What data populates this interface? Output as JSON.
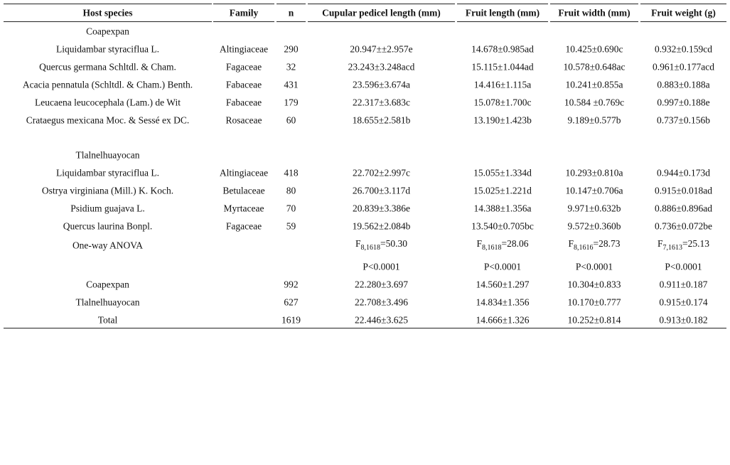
{
  "table": {
    "headers": [
      "Host species",
      "Family",
      "n",
      "Cupular pedicel length (mm)",
      "Fruit length (mm)",
      "Fruit width (mm)",
      "Fruit weight (g)"
    ],
    "rows": [
      [
        "Coapexpan"
      ],
      [
        "Liquidambar styraciflua L.",
        "Altingiaceae",
        "290",
        "20.947±±2.957e",
        "14.678±0.985ad",
        "10.425±0.690c",
        "0.932±0.159cd"
      ],
      [
        "Quercus germana Schltdl. & Cham.",
        "Fagaceae",
        "32",
        "23.243±3.248acd",
        "15.115±1.044ad",
        "10.578±0.648ac",
        "0.961±0.177acd"
      ],
      [
        "Acacia pennatula (Schltdl. & Cham.) Benth.",
        "Fabaceae",
        "431",
        "23.596±3.674a",
        "14.416±1.115a",
        "10.241±0.855a",
        "0.883±0.188a"
      ],
      [
        "Leucaena leucocephala (Lam.) de Wit",
        "Fabaceae",
        "179",
        "22.317±3.683c",
        "15.078±1.700c",
        "10.584 ±0.769c",
        "0.997±0.188e"
      ],
      [
        "Crataegus mexicana Moc. & Sessé ex DC.",
        "Rosaceae",
        "60",
        "18.655±2.581b",
        "13.190±1.423b",
        "9.189±0.577b",
        "0.737±0.156b"
      ],
      [
        "Tlalnelhuayocan"
      ],
      [
        "Liquidambar styraciflua L.",
        "Altingiaceae",
        "418",
        "22.702±2.997c",
        "15.055±1.334d",
        "10.293±0.810a",
        "0.944±0.173d"
      ],
      [
        "Ostrya virginiana (Mill.) K. Koch.",
        "Betulaceae",
        "80",
        "26.700±3.117d",
        "15.025±1.221d",
        "10.147±0.706a",
        "0.915±0.018ad"
      ],
      [
        "Psidium guajava L.",
        "Myrtaceae",
        "70",
        "20.839±3.386e",
        "14.388±1.356a",
        "9.971±0.632b",
        "0.886±0.896ad"
      ],
      [
        "Quercus laurina Bonpl.",
        "Fagaceae",
        "59",
        "19.562±2.084b",
        "13.540±0.705bc",
        "9.572±0.360b",
        "0.736±0.072be"
      ],
      [
        "One-way ANOVA",
        null,
        null,
        {
          "base": "F",
          "sub": "8,1618",
          "tail": "=50.30"
        },
        {
          "base": "F",
          "sub": "8,1618",
          "tail": "=28.06"
        },
        {
          "base": "F",
          "sub": "8,1616",
          "tail": "=28.73"
        },
        {
          "base": "F",
          "sub": "7,1613",
          "tail": "=25.13"
        }
      ],
      [
        null,
        null,
        null,
        "P<0.0001",
        "P<0.0001",
        "P<0.0001",
        "P<0.0001"
      ],
      [
        "Coapexpan",
        null,
        "992",
        "22.280±3.697",
        "14.560±1.297",
        "10.304±0.833",
        "0.911±0.187"
      ],
      [
        "Tlalnelhuayocan",
        null,
        "627",
        "22.708±3.496",
        "14.834±1.356",
        "10.170±0.777",
        "0.915±0.174"
      ],
      [
        "Total",
        null,
        "1619",
        "22.446±3.625",
        "14.666±1.326",
        "10.252±0.814",
        "0.913±0.182"
      ]
    ]
  }
}
